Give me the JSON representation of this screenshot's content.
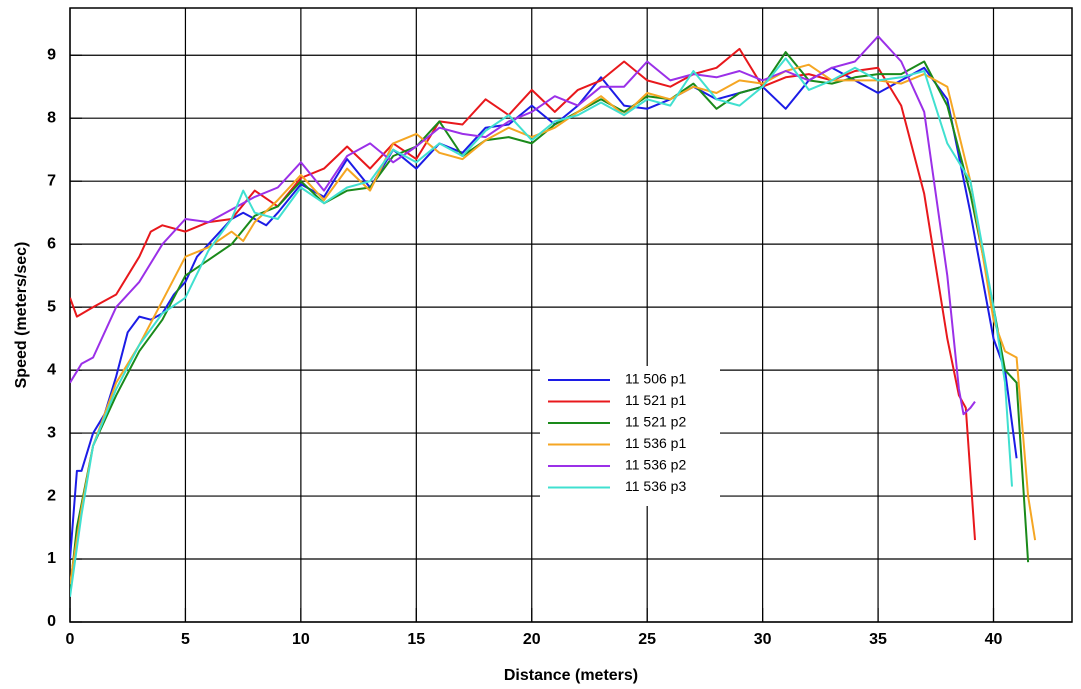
{
  "chart_data": {
    "type": "line",
    "xlabel": "Distance (meters)",
    "ylabel": "Speed (meters/sec)",
    "xlim": [
      0,
      43.4
    ],
    "ylim": [
      0,
      9.75
    ],
    "xticks": [
      0,
      5,
      10,
      15,
      20,
      25,
      30,
      35,
      40
    ],
    "yticks": [
      0,
      1,
      2,
      3,
      4,
      5,
      6,
      7,
      8,
      9
    ],
    "grid": true,
    "legend": "center",
    "series": [
      {
        "name": "11 506 p1",
        "color": "#1c1ce6",
        "x": [
          0,
          0.3,
          0.5,
          1,
          1.5,
          2,
          2.5,
          3,
          3.5,
          4,
          4.5,
          5,
          5.5,
          6,
          7,
          7.5,
          8.5,
          9,
          10,
          11,
          12,
          13,
          14,
          15,
          16,
          17,
          18,
          19,
          20,
          21,
          22,
          23,
          24,
          25,
          26,
          27,
          28,
          29,
          30,
          31,
          32,
          33,
          34,
          35,
          36,
          37,
          38,
          39,
          40,
          40.5,
          41
        ],
        "values": [
          1.0,
          2.4,
          2.4,
          3.0,
          3.3,
          3.9,
          4.6,
          4.85,
          4.8,
          4.9,
          5.2,
          5.4,
          5.8,
          6.0,
          6.4,
          6.5,
          6.3,
          6.5,
          6.95,
          6.75,
          7.35,
          6.9,
          7.5,
          7.2,
          7.6,
          7.45,
          7.85,
          7.9,
          8.2,
          7.9,
          8.2,
          8.65,
          8.2,
          8.15,
          8.3,
          8.5,
          8.3,
          8.4,
          8.5,
          8.15,
          8.6,
          8.8,
          8.6,
          8.4,
          8.6,
          8.8,
          8.3,
          6.5,
          4.5,
          4.0,
          2.6
        ]
      },
      {
        "name": "11 521 p1",
        "color": "#e8181c",
        "x": [
          0,
          0.3,
          1,
          2,
          3,
          3.5,
          4,
          5,
          6,
          7,
          8,
          9,
          10,
          11,
          12,
          13,
          14,
          15,
          16,
          17,
          18,
          19,
          20,
          21,
          22,
          23,
          24,
          25,
          26,
          27,
          28,
          29,
          30,
          31,
          32,
          33,
          34,
          35,
          36,
          37,
          38,
          38.5,
          38.8,
          39.2
        ],
        "values": [
          5.15,
          4.85,
          5.0,
          5.2,
          5.8,
          6.2,
          6.3,
          6.2,
          6.35,
          6.4,
          6.85,
          6.6,
          7.05,
          7.2,
          7.55,
          7.2,
          7.6,
          7.35,
          7.95,
          7.9,
          8.3,
          8.05,
          8.45,
          8.1,
          8.45,
          8.6,
          8.9,
          8.6,
          8.5,
          8.7,
          8.8,
          9.1,
          8.5,
          8.65,
          8.7,
          8.6,
          8.75,
          8.8,
          8.2,
          6.8,
          4.5,
          3.6,
          3.4,
          1.3
        ]
      },
      {
        "name": "11 521 p2",
        "color": "#1a8a1a",
        "x": [
          0,
          0.3,
          1,
          2,
          3,
          4,
          5,
          6,
          7,
          8,
          9,
          10,
          11,
          12,
          13,
          14,
          15,
          16,
          17,
          18,
          19,
          20,
          21,
          22,
          23,
          24,
          25,
          26,
          27,
          28,
          29,
          30,
          31,
          32,
          33,
          34,
          35,
          36,
          37,
          38,
          39,
          40,
          40.5,
          41,
          41.5
        ],
        "values": [
          0.5,
          1.5,
          2.8,
          3.6,
          4.3,
          4.8,
          5.5,
          5.75,
          6.0,
          6.45,
          6.6,
          7.0,
          6.65,
          6.85,
          6.9,
          7.4,
          7.55,
          7.95,
          7.4,
          7.65,
          7.7,
          7.6,
          7.9,
          8.1,
          8.3,
          8.1,
          8.35,
          8.3,
          8.55,
          8.15,
          8.4,
          8.5,
          9.05,
          8.6,
          8.55,
          8.65,
          8.7,
          8.7,
          8.9,
          8.2,
          6.8,
          5.0,
          4.0,
          3.8,
          0.95
        ]
      },
      {
        "name": "11 536 p1",
        "color": "#f5a623",
        "x": [
          0,
          0.5,
          1,
          2,
          3,
          4,
          5,
          6,
          7,
          7.5,
          8,
          9,
          10,
          11,
          12,
          13,
          14,
          15,
          16,
          17,
          18,
          19,
          20,
          21,
          22,
          23,
          24,
          25,
          26,
          27,
          28,
          29,
          30,
          31,
          32,
          33,
          34,
          35,
          36,
          37,
          38,
          39,
          40,
          40.5,
          41,
          41.5,
          41.8
        ],
        "values": [
          0.6,
          1.8,
          2.8,
          3.8,
          4.4,
          5.1,
          5.8,
          5.95,
          6.2,
          6.05,
          6.35,
          6.7,
          7.1,
          6.7,
          7.2,
          6.85,
          7.6,
          7.75,
          7.45,
          7.35,
          7.65,
          7.85,
          7.7,
          7.85,
          8.1,
          8.35,
          8.05,
          8.4,
          8.3,
          8.5,
          8.4,
          8.6,
          8.55,
          8.75,
          8.85,
          8.6,
          8.6,
          8.6,
          8.55,
          8.7,
          8.5,
          7.0,
          4.8,
          4.3,
          4.2,
          2.0,
          1.3
        ]
      },
      {
        "name": "11 536 p2",
        "color": "#9b30e8",
        "x": [
          0,
          0.5,
          1,
          2,
          3,
          4,
          5,
          6,
          7,
          8,
          9,
          10,
          11,
          12,
          13,
          14,
          15,
          16,
          17,
          18,
          19,
          20,
          21,
          22,
          23,
          24,
          25,
          26,
          27,
          28,
          29,
          30,
          31,
          32,
          33,
          34,
          35,
          36,
          37,
          38,
          38.5,
          38.7,
          39,
          39.2
        ],
        "values": [
          3.8,
          4.1,
          4.2,
          5.0,
          5.4,
          6.0,
          6.4,
          6.35,
          6.55,
          6.75,
          6.9,
          7.3,
          6.85,
          7.4,
          7.6,
          7.3,
          7.55,
          7.85,
          7.75,
          7.7,
          7.95,
          8.1,
          8.35,
          8.2,
          8.5,
          8.5,
          8.9,
          8.6,
          8.7,
          8.65,
          8.75,
          8.6,
          8.75,
          8.6,
          8.8,
          8.9,
          9.3,
          8.9,
          8.1,
          5.5,
          3.7,
          3.3,
          3.4,
          3.5
        ]
      },
      {
        "name": "11 536 p3",
        "color": "#40e0d0",
        "x": [
          0,
          0.5,
          1,
          2,
          3,
          4,
          5,
          6,
          7,
          7.5,
          8,
          9,
          10,
          11,
          12,
          13,
          14,
          15,
          16,
          17,
          18,
          19,
          20,
          21,
          22,
          23,
          24,
          25,
          26,
          27,
          28,
          29,
          30,
          31,
          32,
          33,
          34,
          35,
          36,
          37,
          38,
          39,
          40,
          40.5,
          40.8
        ],
        "values": [
          0.4,
          1.7,
          2.8,
          3.7,
          4.4,
          4.9,
          5.15,
          5.9,
          6.4,
          6.85,
          6.5,
          6.4,
          6.9,
          6.65,
          6.9,
          7.0,
          7.5,
          7.3,
          7.6,
          7.4,
          7.8,
          8.05,
          7.65,
          7.95,
          8.05,
          8.25,
          8.05,
          8.3,
          8.2,
          8.75,
          8.3,
          8.2,
          8.5,
          8.95,
          8.45,
          8.6,
          8.8,
          8.6,
          8.65,
          8.75,
          7.6,
          7.0,
          5.0,
          3.8,
          2.15
        ]
      }
    ]
  }
}
